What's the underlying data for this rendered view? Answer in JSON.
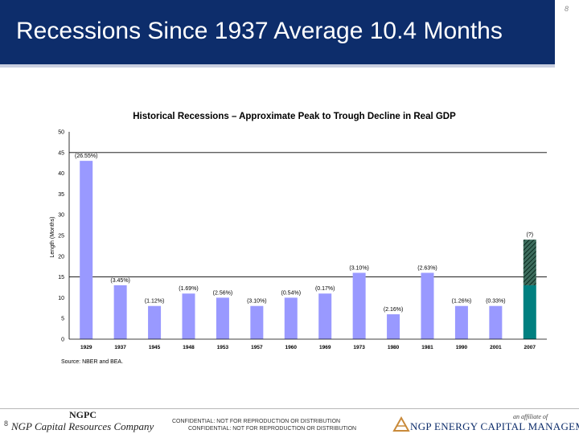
{
  "slide": {
    "title": "Recessions Since 1937 Average 10.4 Months",
    "page_number": "8"
  },
  "footer": {
    "company_short": "NGPC",
    "company_long": "NGP Capital Resources Company",
    "confidential_1": "CONFIDENTIAL: NOT FOR REPRODUCTION OR DISTRIBUTION",
    "confidential_2": "CONFIDENTIAL: NOT FOR REPRODUCTION OR DISTRIBUTION",
    "affiliate_text": "an affiliate of",
    "affiliate_name": "NGP ENERGY CAPITAL MANAGEMENT"
  },
  "colors": {
    "header_bg": "#0d2d6b",
    "bar": "#9999ff",
    "bar_2007_base": "#008080",
    "bar_2007_hatch": "#1a4a3a",
    "average_line": "#000000"
  },
  "chart_data": {
    "type": "bar",
    "title": "Historical Recessions – Approximate Peak to Trough Decline in Real GDP",
    "ylabel": "Length (Months)",
    "xlabel": "",
    "ylim": [
      0,
      50
    ],
    "yticks": [
      "0",
      "5",
      "10",
      "15",
      "20",
      "25",
      "30",
      "35",
      "40",
      "45",
      "50"
    ],
    "categories": [
      "1929",
      "1937",
      "1945",
      "1948",
      "1953",
      "1957",
      "1960",
      "1969",
      "1973",
      "1980",
      "1981",
      "1990",
      "2001",
      "2007"
    ],
    "values": [
      43,
      13,
      8,
      11,
      10,
      8,
      10,
      11,
      16,
      6,
      16,
      8,
      8,
      13
    ],
    "labels": [
      "(26.55%)",
      "(3.45%)",
      "(1.12%)",
      "(1.69%)",
      "(2.56%)",
      "(3.10%)",
      "(0.54%)",
      "(0.17%)",
      "(3.10%)",
      "(2.16%)",
      "(2.63%)",
      "(1.26%)",
      "(0.33%)",
      ""
    ],
    "extension_2007": {
      "from": 13,
      "to": 24,
      "label": "(?)"
    },
    "reference_lines": [
      45,
      15
    ],
    "source": "Source: NBER and BEA.",
    "grid": false,
    "legend": "none"
  }
}
